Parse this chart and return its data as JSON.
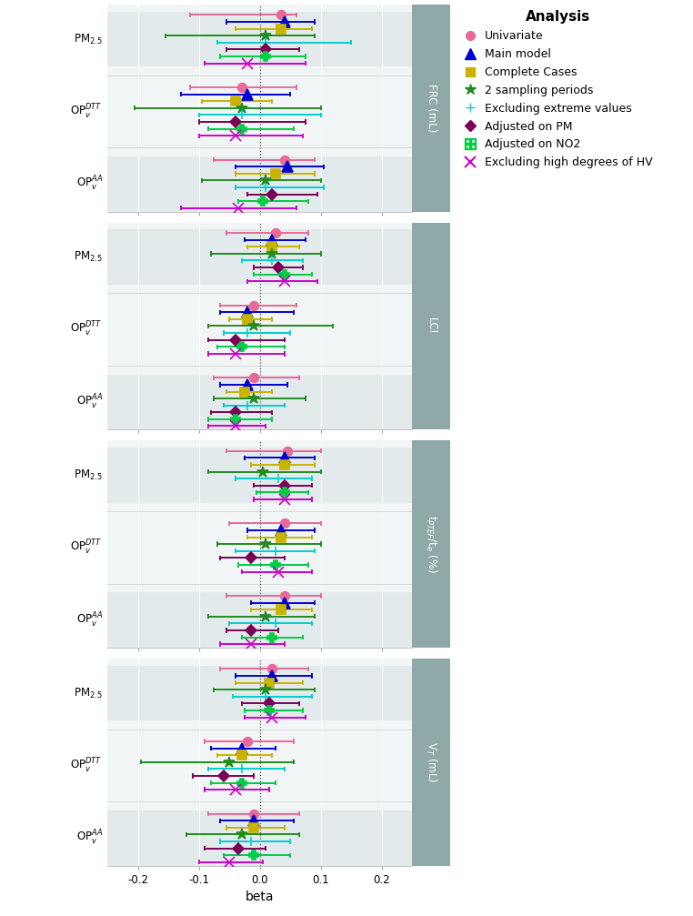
{
  "panels": [
    {
      "ylabel": "FRC (mL)",
      "groups": [
        {
          "label": "PM$_{2.5}$",
          "analyses": [
            {
              "name": "Univariate",
              "beta": 0.035,
              "lo": -0.115,
              "hi": 0.06
            },
            {
              "name": "Main model",
              "beta": 0.04,
              "lo": -0.055,
              "hi": 0.09
            },
            {
              "name": "Complete Cases",
              "beta": 0.035,
              "lo": -0.04,
              "hi": 0.085
            },
            {
              "name": "2 sampling periods",
              "beta": 0.01,
              "lo": -0.155,
              "hi": 0.09
            },
            {
              "name": "Excluding extreme values",
              "beta": 0.01,
              "lo": -0.07,
              "hi": 0.15
            },
            {
              "name": "Adjusted on PM",
              "beta": 0.01,
              "lo": -0.055,
              "hi": 0.065
            },
            {
              "name": "Adjusted on NO2",
              "beta": 0.01,
              "lo": -0.065,
              "hi": 0.075
            },
            {
              "name": "Excluding high degrees of HV",
              "beta": -0.02,
              "lo": -0.09,
              "hi": 0.075
            }
          ]
        },
        {
          "label": "OP$_v^{DTT}$",
          "analyses": [
            {
              "name": "Univariate",
              "beta": -0.03,
              "lo": -0.115,
              "hi": 0.06
            },
            {
              "name": "Main model",
              "beta": -0.02,
              "lo": -0.13,
              "hi": 0.05
            },
            {
              "name": "Complete Cases",
              "beta": -0.04,
              "lo": -0.095,
              "hi": 0.02
            },
            {
              "name": "2 sampling periods",
              "beta": -0.03,
              "lo": -0.205,
              "hi": 0.1
            },
            {
              "name": "Excluding extreme values",
              "beta": -0.03,
              "lo": -0.1,
              "hi": 0.1
            },
            {
              "name": "Adjusted on PM",
              "beta": -0.04,
              "lo": -0.1,
              "hi": 0.075
            },
            {
              "name": "Adjusted on NO2",
              "beta": -0.03,
              "lo": -0.085,
              "hi": 0.055
            },
            {
              "name": "Excluding high degrees of HV",
              "beta": -0.04,
              "lo": -0.1,
              "hi": 0.07
            }
          ]
        },
        {
          "label": "OP$_v^{AA}$",
          "analyses": [
            {
              "name": "Univariate",
              "beta": 0.04,
              "lo": -0.075,
              "hi": 0.09
            },
            {
              "name": "Main model",
              "beta": 0.045,
              "lo": -0.04,
              "hi": 0.105
            },
            {
              "name": "Complete Cases",
              "beta": 0.025,
              "lo": -0.04,
              "hi": 0.09
            },
            {
              "name": "2 sampling periods",
              "beta": 0.01,
              "lo": -0.095,
              "hi": 0.1
            },
            {
              "name": "Excluding extreme values",
              "beta": 0.01,
              "lo": -0.04,
              "hi": 0.105
            },
            {
              "name": "Adjusted on PM",
              "beta": 0.02,
              "lo": -0.02,
              "hi": 0.095
            },
            {
              "name": "Adjusted on NO2",
              "beta": 0.005,
              "lo": -0.035,
              "hi": 0.08
            },
            {
              "name": "Excluding high degrees of HV",
              "beta": -0.035,
              "lo": -0.13,
              "hi": 0.06
            }
          ]
        }
      ]
    },
    {
      "ylabel": "LCI",
      "groups": [
        {
          "label": "PM$_{2.5}$",
          "analyses": [
            {
              "name": "Univariate",
              "beta": 0.025,
              "lo": -0.055,
              "hi": 0.08
            },
            {
              "name": "Main model",
              "beta": 0.02,
              "lo": -0.025,
              "hi": 0.075
            },
            {
              "name": "Complete Cases",
              "beta": 0.02,
              "lo": -0.02,
              "hi": 0.065
            },
            {
              "name": "2 sampling periods",
              "beta": 0.02,
              "lo": -0.08,
              "hi": 0.1
            },
            {
              "name": "Excluding extreme values",
              "beta": 0.02,
              "lo": -0.03,
              "hi": 0.07
            },
            {
              "name": "Adjusted on PM",
              "beta": 0.03,
              "lo": -0.01,
              "hi": 0.07
            },
            {
              "name": "Adjusted on NO2",
              "beta": 0.04,
              "lo": -0.01,
              "hi": 0.085
            },
            {
              "name": "Excluding high degrees of HV",
              "beta": 0.04,
              "lo": -0.02,
              "hi": 0.095
            }
          ]
        },
        {
          "label": "OP$_v^{DTT}$",
          "analyses": [
            {
              "name": "Univariate",
              "beta": -0.01,
              "lo": -0.065,
              "hi": 0.06
            },
            {
              "name": "Main model",
              "beta": -0.02,
              "lo": -0.065,
              "hi": 0.055
            },
            {
              "name": "Complete Cases",
              "beta": -0.02,
              "lo": -0.05,
              "hi": 0.02
            },
            {
              "name": "2 sampling periods",
              "beta": -0.01,
              "lo": -0.085,
              "hi": 0.12
            },
            {
              "name": "Excluding extreme values",
              "beta": -0.02,
              "lo": -0.06,
              "hi": 0.05
            },
            {
              "name": "Adjusted on PM",
              "beta": -0.04,
              "lo": -0.085,
              "hi": 0.04
            },
            {
              "name": "Adjusted on NO2",
              "beta": -0.03,
              "lo": -0.07,
              "hi": 0.04
            },
            {
              "name": "Excluding high degrees of HV",
              "beta": -0.04,
              "lo": -0.085,
              "hi": 0.04
            }
          ]
        },
        {
          "label": "OP$_v^{AA}$",
          "analyses": [
            {
              "name": "Univariate",
              "beta": -0.01,
              "lo": -0.075,
              "hi": 0.065
            },
            {
              "name": "Main model",
              "beta": -0.02,
              "lo": -0.065,
              "hi": 0.045
            },
            {
              "name": "Complete Cases",
              "beta": -0.025,
              "lo": -0.055,
              "hi": 0.02
            },
            {
              "name": "2 sampling periods",
              "beta": -0.01,
              "lo": -0.075,
              "hi": 0.075
            },
            {
              "name": "Excluding extreme values",
              "beta": -0.02,
              "lo": -0.06,
              "hi": 0.04
            },
            {
              "name": "Adjusted on PM",
              "beta": -0.04,
              "lo": -0.08,
              "hi": 0.02
            },
            {
              "name": "Adjusted on NO2",
              "beta": -0.04,
              "lo": -0.085,
              "hi": 0.02
            },
            {
              "name": "Excluding high degrees of HV",
              "beta": -0.04,
              "lo": -0.085,
              "hi": 0.01
            }
          ]
        }
      ]
    },
    {
      "ylabel": "t$_{PTEF}$/t$_e$ (%)",
      "groups": [
        {
          "label": "PM$_{2.5}$",
          "analyses": [
            {
              "name": "Univariate",
              "beta": 0.045,
              "lo": -0.055,
              "hi": 0.1
            },
            {
              "name": "Main model",
              "beta": 0.04,
              "lo": -0.025,
              "hi": 0.09
            },
            {
              "name": "Complete Cases",
              "beta": 0.04,
              "lo": -0.015,
              "hi": 0.09
            },
            {
              "name": "2 sampling periods",
              "beta": 0.005,
              "lo": -0.085,
              "hi": 0.1
            },
            {
              "name": "Excluding extreme values",
              "beta": 0.03,
              "lo": -0.04,
              "hi": 0.085
            },
            {
              "name": "Adjusted on PM",
              "beta": 0.04,
              "lo": -0.01,
              "hi": 0.085
            },
            {
              "name": "Adjusted on NO2",
              "beta": 0.04,
              "lo": -0.005,
              "hi": 0.08
            },
            {
              "name": "Excluding high degrees of HV",
              "beta": 0.04,
              "lo": -0.01,
              "hi": 0.085
            }
          ]
        },
        {
          "label": "OP$_v^{DTT}$",
          "analyses": [
            {
              "name": "Univariate",
              "beta": 0.04,
              "lo": -0.05,
              "hi": 0.1
            },
            {
              "name": "Main model",
              "beta": 0.035,
              "lo": -0.02,
              "hi": 0.09
            },
            {
              "name": "Complete Cases",
              "beta": 0.035,
              "lo": -0.02,
              "hi": 0.085
            },
            {
              "name": "2 sampling periods",
              "beta": 0.01,
              "lo": -0.07,
              "hi": 0.1
            },
            {
              "name": "Excluding extreme values",
              "beta": 0.025,
              "lo": -0.04,
              "hi": 0.09
            },
            {
              "name": "Adjusted on PM",
              "beta": -0.015,
              "lo": -0.065,
              "hi": 0.04
            },
            {
              "name": "Adjusted on NO2",
              "beta": 0.025,
              "lo": -0.035,
              "hi": 0.08
            },
            {
              "name": "Excluding high degrees of HV",
              "beta": 0.03,
              "lo": -0.03,
              "hi": 0.085
            }
          ]
        },
        {
          "label": "OP$_v^{AA}$",
          "analyses": [
            {
              "name": "Univariate",
              "beta": 0.04,
              "lo": -0.055,
              "hi": 0.1
            },
            {
              "name": "Main model",
              "beta": 0.04,
              "lo": -0.015,
              "hi": 0.09
            },
            {
              "name": "Complete Cases",
              "beta": 0.035,
              "lo": -0.015,
              "hi": 0.085
            },
            {
              "name": "2 sampling periods",
              "beta": 0.01,
              "lo": -0.085,
              "hi": 0.09
            },
            {
              "name": "Excluding extreme values",
              "beta": 0.025,
              "lo": -0.05,
              "hi": 0.085
            },
            {
              "name": "Adjusted on PM",
              "beta": -0.015,
              "lo": -0.055,
              "hi": 0.03
            },
            {
              "name": "Adjusted on NO2",
              "beta": 0.02,
              "lo": -0.03,
              "hi": 0.07
            },
            {
              "name": "Excluding high degrees of HV",
              "beta": -0.015,
              "lo": -0.065,
              "hi": 0.04
            }
          ]
        }
      ]
    },
    {
      "ylabel": "V$_T$ (mL)",
      "groups": [
        {
          "label": "PM$_{2.5}$",
          "analyses": [
            {
              "name": "Univariate",
              "beta": 0.02,
              "lo": -0.065,
              "hi": 0.08
            },
            {
              "name": "Main model",
              "beta": 0.02,
              "lo": -0.04,
              "hi": 0.085
            },
            {
              "name": "Complete Cases",
              "beta": 0.015,
              "lo": -0.04,
              "hi": 0.07
            },
            {
              "name": "2 sampling periods",
              "beta": 0.01,
              "lo": -0.075,
              "hi": 0.09
            },
            {
              "name": "Excluding extreme values",
              "beta": 0.01,
              "lo": -0.045,
              "hi": 0.085
            },
            {
              "name": "Adjusted on PM",
              "beta": 0.015,
              "lo": -0.03,
              "hi": 0.065
            },
            {
              "name": "Adjusted on NO2",
              "beta": 0.015,
              "lo": -0.025,
              "hi": 0.07
            },
            {
              "name": "Excluding high degrees of HV",
              "beta": 0.02,
              "lo": -0.025,
              "hi": 0.075
            }
          ]
        },
        {
          "label": "OP$_v^{DTT}$",
          "analyses": [
            {
              "name": "Univariate",
              "beta": -0.02,
              "lo": -0.09,
              "hi": 0.055
            },
            {
              "name": "Main model",
              "beta": -0.03,
              "lo": -0.08,
              "hi": 0.025
            },
            {
              "name": "Complete Cases",
              "beta": -0.03,
              "lo": -0.07,
              "hi": 0.02
            },
            {
              "name": "2 sampling periods",
              "beta": -0.05,
              "lo": -0.195,
              "hi": 0.055
            },
            {
              "name": "Excluding extreme values",
              "beta": -0.03,
              "lo": -0.085,
              "hi": 0.04
            },
            {
              "name": "Adjusted on PM",
              "beta": -0.06,
              "lo": -0.11,
              "hi": -0.01
            },
            {
              "name": "Adjusted on NO2",
              "beta": -0.03,
              "lo": -0.08,
              "hi": 0.025
            },
            {
              "name": "Excluding high degrees of HV",
              "beta": -0.04,
              "lo": -0.09,
              "hi": 0.015
            }
          ]
        },
        {
          "label": "OP$_v^{AA}$",
          "analyses": [
            {
              "name": "Univariate",
              "beta": -0.01,
              "lo": -0.085,
              "hi": 0.065
            },
            {
              "name": "Main model",
              "beta": -0.01,
              "lo": -0.065,
              "hi": 0.055
            },
            {
              "name": "Complete Cases",
              "beta": -0.01,
              "lo": -0.055,
              "hi": 0.04
            },
            {
              "name": "2 sampling periods",
              "beta": -0.03,
              "lo": -0.12,
              "hi": 0.065
            },
            {
              "name": "Excluding extreme values",
              "beta": -0.015,
              "lo": -0.065,
              "hi": 0.05
            },
            {
              "name": "Adjusted on PM",
              "beta": -0.035,
              "lo": -0.09,
              "hi": 0.01
            },
            {
              "name": "Adjusted on NO2",
              "beta": -0.01,
              "lo": -0.06,
              "hi": 0.05
            },
            {
              "name": "Excluding high degrees of HV",
              "beta": -0.05,
              "lo": -0.1,
              "hi": 0.005
            }
          ]
        }
      ]
    }
  ],
  "analysis_styles": [
    {
      "name": "Univariate",
      "color": "#E8699A",
      "marker": "o",
      "ms": 7,
      "lw": 1.4
    },
    {
      "name": "Main model",
      "color": "#0000CD",
      "marker": "^",
      "ms": 8,
      "lw": 1.4
    },
    {
      "name": "Complete Cases",
      "color": "#C8B400",
      "marker": "s",
      "ms": 7,
      "lw": 1.4
    },
    {
      "name": "2 sampling periods",
      "color": "#228B22",
      "marker": "*",
      "ms": 9,
      "lw": 1.4
    },
    {
      "name": "Excluding extreme values",
      "color": "#00CED1",
      "marker": "+",
      "ms": 7,
      "lw": 1.4
    },
    {
      "name": "Adjusted on PM",
      "color": "#7B0055",
      "marker": "D",
      "ms": 6,
      "lw": 1.4
    },
    {
      "name": "Adjusted on NO2",
      "color": "#00CC44",
      "marker": "P",
      "ms": 7,
      "lw": 1.4
    },
    {
      "name": "Excluding high degrees of HV",
      "color": "#CC00CC",
      "marker": "x",
      "ms": 8,
      "lw": 1.4
    }
  ],
  "xlim": [
    -0.25,
    0.25
  ],
  "xticks": [
    -0.2,
    -0.1,
    0.0,
    0.1,
    0.2
  ],
  "xlabel": "beta",
  "panel_bg": "#F2F5F6",
  "stripe_color": "#E2EAEC",
  "header_color": "#8FA8A8",
  "grid_color": "#FFFFFF"
}
